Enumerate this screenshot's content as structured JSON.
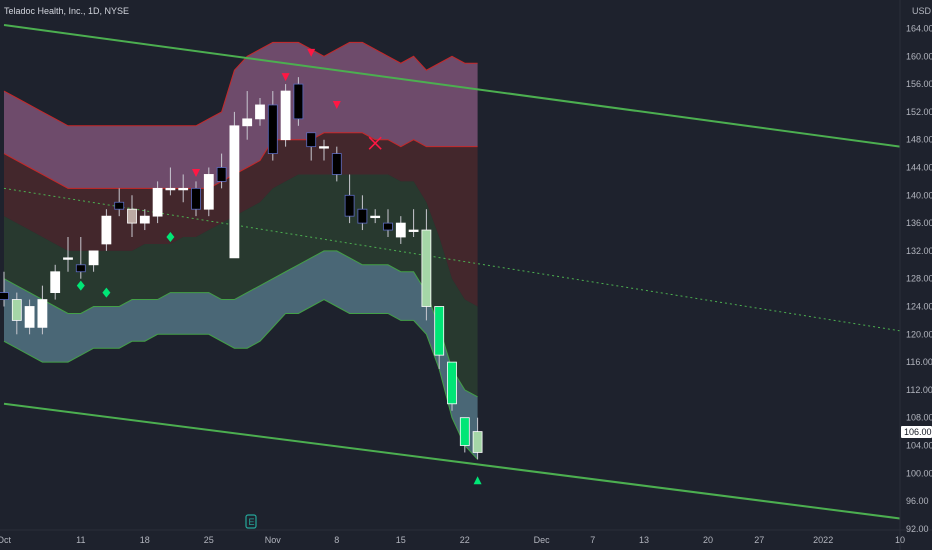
{
  "chart_data": {
    "type": "candlestick",
    "title": "Teladoc Health, Inc., 1D, NYSE",
    "currency": "USD",
    "last_price_label": "106.00",
    "ylim": [
      92,
      166
    ],
    "y_ticks": [
      "92.00",
      "96.00",
      "100.00",
      "104.00",
      "108.00",
      "112.00",
      "116.00",
      "120.00",
      "124.00",
      "128.00",
      "132.00",
      "136.00",
      "140.00",
      "144.00",
      "148.00",
      "152.00",
      "156.00",
      "160.00",
      "164.00"
    ],
    "x_ticks": [
      {
        "label": "Oct",
        "slot": 0
      },
      {
        "label": "11",
        "slot": 6
      },
      {
        "label": "18",
        "slot": 11
      },
      {
        "label": "25",
        "slot": 16
      },
      {
        "label": "Nov",
        "slot": 21
      },
      {
        "label": "8",
        "slot": 26
      },
      {
        "label": "15",
        "slot": 31
      },
      {
        "label": "22",
        "slot": 36
      },
      {
        "label": "Dec",
        "slot": 42
      },
      {
        "label": "7",
        "slot": 46
      },
      {
        "label": "13",
        "slot": 50
      },
      {
        "label": "20",
        "slot": 55
      },
      {
        "label": "27",
        "slot": 59
      },
      {
        "label": "2022",
        "slot": 64
      },
      {
        "label": "10",
        "slot": 70
      }
    ],
    "candles": [
      {
        "o": 126,
        "h": 129,
        "l": 124,
        "c": 125,
        "color": "#000000"
      },
      {
        "o": 125,
        "h": 126,
        "l": 120,
        "c": 122,
        "color": "#a5d6a7"
      },
      {
        "o": 121,
        "h": 125,
        "l": 120,
        "c": 124,
        "color": "#ffffff"
      },
      {
        "o": 125,
        "h": 127,
        "l": 120,
        "c": 121,
        "color": "#ffffff"
      },
      {
        "o": 126,
        "h": 130,
        "l": 125,
        "c": 129,
        "color": "#ffffff"
      },
      {
        "o": 131,
        "h": 134,
        "l": 129,
        "c": 131,
        "color": "#ffffff"
      },
      {
        "o": 129,
        "h": 134,
        "l": 128,
        "c": 130,
        "color": "#000000"
      },
      {
        "o": 130,
        "h": 132,
        "l": 129,
        "c": 132,
        "color": "#ffffff"
      },
      {
        "o": 133,
        "h": 138,
        "l": 132,
        "c": 137,
        "color": "#ffffff"
      },
      {
        "o": 139,
        "h": 141,
        "l": 137,
        "c": 138,
        "color": "#000000"
      },
      {
        "o": 136,
        "h": 140,
        "l": 134,
        "c": 138,
        "color": "#bcaaa4"
      },
      {
        "o": 136,
        "h": 138,
        "l": 135,
        "c": 137,
        "color": "#ffffff"
      },
      {
        "o": 137,
        "h": 142,
        "l": 136,
        "c": 141,
        "color": "#ffffff"
      },
      {
        "o": 141,
        "h": 144,
        "l": 140,
        "c": 141,
        "color": "#ffffff"
      },
      {
        "o": 141,
        "h": 143,
        "l": 139,
        "c": 141,
        "color": "#ffffff"
      },
      {
        "o": 141,
        "h": 142,
        "l": 137,
        "c": 138,
        "color": "#000000"
      },
      {
        "o": 138,
        "h": 144,
        "l": 137,
        "c": 143,
        "color": "#ffffff"
      },
      {
        "o": 144,
        "h": 146,
        "l": 141,
        "c": 142,
        "color": "#000000"
      },
      {
        "o": 131,
        "h": 152,
        "l": 131,
        "c": 150,
        "color": "#ffffff"
      },
      {
        "o": 150,
        "h": 155,
        "l": 148,
        "c": 151,
        "color": "#ffffff"
      },
      {
        "o": 151,
        "h": 154,
        "l": 150,
        "c": 153,
        "color": "#ffffff"
      },
      {
        "o": 153,
        "h": 155,
        "l": 145,
        "c": 146,
        "color": "#000000"
      },
      {
        "o": 148,
        "h": 156,
        "l": 147,
        "c": 155,
        "color": "#ffffff"
      },
      {
        "o": 156,
        "h": 157,
        "l": 150,
        "c": 151,
        "color": "#000000"
      },
      {
        "o": 149,
        "h": 149,
        "l": 145,
        "c": 147,
        "color": "#000000"
      },
      {
        "o": 147,
        "h": 148,
        "l": 145,
        "c": 147,
        "color": "#ffffff"
      },
      {
        "o": 146,
        "h": 147,
        "l": 142,
        "c": 143,
        "color": "#000000"
      },
      {
        "o": 140,
        "h": 143,
        "l": 136,
        "c": 137,
        "color": "#000000"
      },
      {
        "o": 138,
        "h": 140,
        "l": 135,
        "c": 136,
        "color": "#000000"
      },
      {
        "o": 137,
        "h": 138,
        "l": 136,
        "c": 137,
        "color": "#ffffff"
      },
      {
        "o": 136,
        "h": 138,
        "l": 134,
        "c": 135,
        "color": "#000000"
      },
      {
        "o": 134,
        "h": 137,
        "l": 133,
        "c": 136,
        "color": "#ffffff"
      },
      {
        "o": 135,
        "h": 138,
        "l": 134,
        "c": 135,
        "color": "#ffffff"
      },
      {
        "o": 135,
        "h": 138,
        "l": 122,
        "c": 124,
        "color": "#a5d6a7"
      },
      {
        "o": 124,
        "h": 124,
        "l": 115,
        "c": 117,
        "color": "#00e676"
      },
      {
        "o": 116,
        "h": 116,
        "l": 109,
        "c": 110,
        "color": "#00e676"
      },
      {
        "o": 108,
        "h": 108,
        "l": 103,
        "c": 104,
        "color": "#00e676"
      },
      {
        "o": 103,
        "h": 108,
        "l": 102,
        "c": 106,
        "color": "#a5d6a7"
      }
    ],
    "keltner_bands": {
      "upper_outer": [
        155,
        154,
        153,
        152,
        151,
        150,
        150,
        150,
        150,
        150,
        150,
        150,
        150,
        150,
        150,
        150,
        151,
        152,
        158,
        160,
        161,
        162,
        162,
        162,
        161,
        160,
        161,
        162,
        162,
        161,
        160,
        159,
        160,
        158,
        159,
        160,
        159,
        159
      ],
      "upper_inner": [
        146,
        145,
        144,
        143,
        142,
        141,
        141,
        141,
        141,
        141,
        141,
        141,
        141,
        141,
        141,
        141,
        141,
        142,
        143,
        144,
        145,
        148,
        148,
        148,
        148,
        149,
        149,
        149,
        149,
        148,
        148,
        147,
        148,
        147,
        147,
        147,
        147,
        147
      ],
      "middle": [
        137,
        136,
        135,
        134,
        133,
        132,
        132,
        132,
        132,
        132,
        132,
        133,
        133,
        133,
        134,
        134,
        135,
        136,
        137,
        138,
        139,
        141,
        142,
        143,
        143,
        143,
        143,
        143,
        143,
        143,
        143,
        142,
        142,
        139,
        134,
        128,
        125,
        124
      ],
      "lower_inner": [
        128,
        127,
        126,
        125,
        124,
        123,
        123,
        124,
        124,
        124,
        125,
        125,
        125,
        126,
        126,
        126,
        126,
        125,
        125,
        126,
        127,
        128,
        129,
        130,
        131,
        132,
        132,
        131,
        130,
        130,
        130,
        129,
        129,
        126,
        121,
        115,
        112,
        111
      ],
      "lower_outer": [
        119,
        118,
        117,
        116,
        116,
        116,
        117,
        118,
        118,
        118,
        119,
        119,
        120,
        120,
        120,
        120,
        120,
        119,
        118,
        118,
        119,
        121,
        123,
        123,
        124,
        125,
        124,
        123,
        123,
        123,
        123,
        122,
        122,
        120,
        115,
        108,
        104,
        102
      ]
    },
    "trend_channel": {
      "upper": {
        "start": [
          0,
          164.5
        ],
        "end": [
          70,
          147.0
        ]
      },
      "middle": {
        "start": [
          0,
          141.0
        ],
        "end": [
          70,
          120.5
        ]
      },
      "lower": {
        "start": [
          0,
          110.0
        ],
        "end": [
          70,
          93.5
        ]
      }
    },
    "signals": [
      {
        "type": "sell-arrow",
        "slot": 15,
        "value": 143.2
      },
      {
        "type": "sell-arrow",
        "slot": 22,
        "value": 157.0
      },
      {
        "type": "sell-arrow",
        "slot": 24,
        "value": 160.5
      },
      {
        "type": "sell-arrow",
        "slot": 26,
        "value": 153.0
      },
      {
        "type": "exit-cross",
        "slot": 29,
        "value": 147.5
      },
      {
        "type": "buy-diamond",
        "slot": 6,
        "value": 127.0
      },
      {
        "type": "buy-diamond",
        "slot": 8,
        "value": 126.0
      },
      {
        "type": "buy-diamond",
        "slot": 13,
        "value": 134.0
      },
      {
        "type": "buy-arrow",
        "slot": 37,
        "value": 99.0
      }
    ],
    "colors": {
      "background": "#1e222d",
      "upper_outer_fill": "#8a5a80",
      "upper_inner_fill": "#5c2c2c",
      "lower_inner_fill": "#2e4a30",
      "lower_outer_fill": "#5a7f8f",
      "band_red_line": "#c62828",
      "band_green_line": "#43a047",
      "channel_line": "#4caf50",
      "sell_marker": "#ff1744",
      "buy_marker": "#00e676",
      "price_badge": "#ffffff"
    }
  },
  "footer": {
    "logo": "tradingview-logo-icon"
  }
}
